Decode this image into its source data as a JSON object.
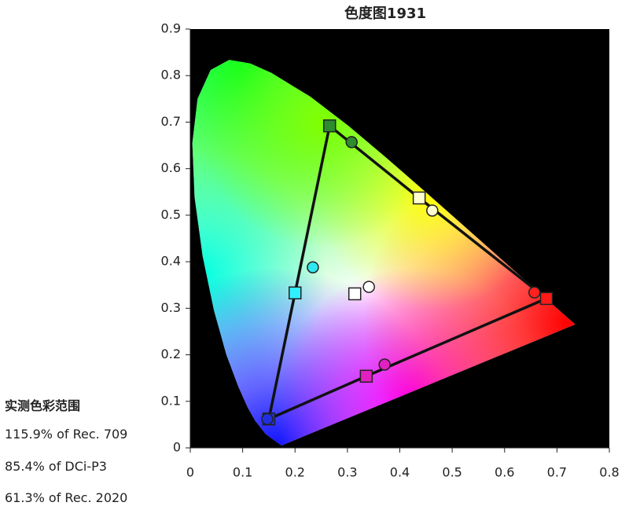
{
  "chart_data": {
    "type": "scatter",
    "title": "色度图1931",
    "xlim": [
      0,
      0.8
    ],
    "ylim": [
      0,
      0.9
    ],
    "xticks": [
      0,
      0.1,
      0.2,
      0.3,
      0.4,
      0.5,
      0.6,
      0.7,
      0.8
    ],
    "yticks": [
      0,
      0.1,
      0.2,
      0.3,
      0.4,
      0.5,
      0.6,
      0.7,
      0.8,
      0.9
    ],
    "background": "#000000",
    "series": [
      {
        "marker": "square",
        "outline": true,
        "x": [
          0.266,
          0.437,
          0.68,
          0.336,
          0.15,
          0.2
        ],
        "y": [
          0.692,
          0.537,
          0.321,
          0.154,
          0.062,
          0.333
        ],
        "colors": [
          "#2e8b2e",
          "#ffffd0",
          "#ff1a1a",
          "#e020c0",
          "#2030e0",
          "#30f0ff"
        ]
      },
      {
        "marker": "square",
        "x": [
          0.314
        ],
        "y": [
          0.331
        ],
        "colors": [
          "#ffffff"
        ]
      },
      {
        "marker": "circle",
        "x": [
          0.308,
          0.462,
          0.657,
          0.371,
          0.147,
          0.234,
          0.341
        ],
        "y": [
          0.657,
          0.51,
          0.334,
          0.179,
          0.062,
          0.388,
          0.346
        ],
        "colors": [
          "#2e8b2e",
          "#ffffd0",
          "#ff2020",
          "#e020c0",
          "#2030e0",
          "#30e8f0",
          "#ffffff"
        ]
      }
    ]
  },
  "gamut_title": "实测色彩范围",
  "gamut_lines": [
    "115.9% of Rec. 709",
    "85.4% of DCi-P3",
    "61.3% of Rec. 2020"
  ]
}
